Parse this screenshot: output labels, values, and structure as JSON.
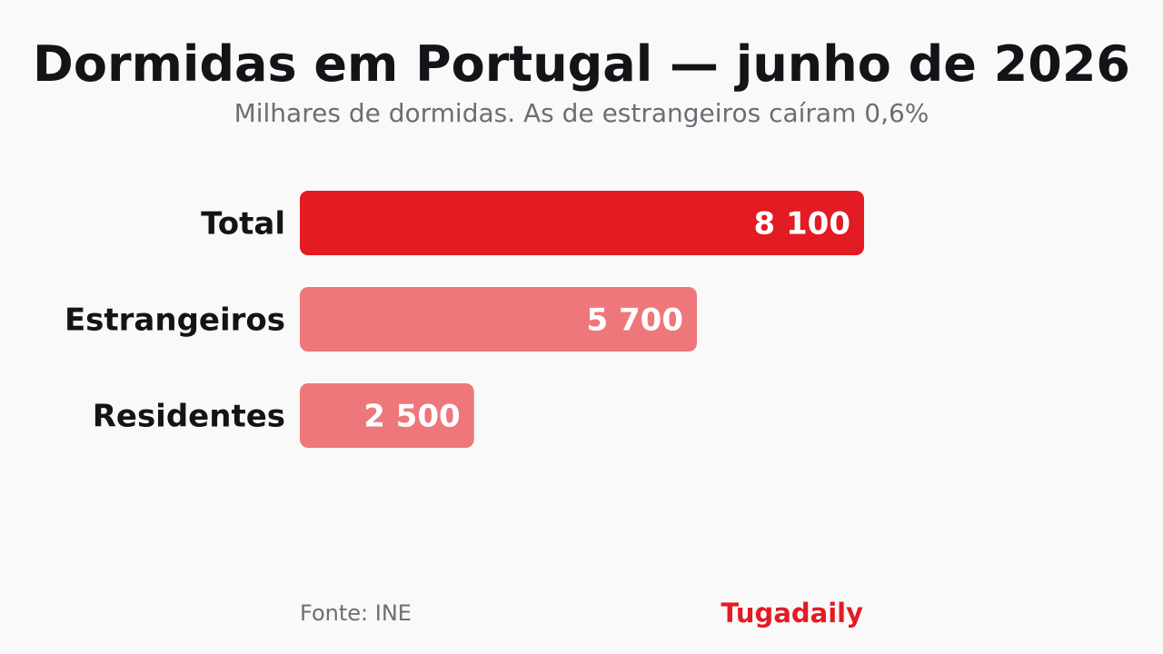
{
  "title": "Dormidas em Portugal — junho de 2026",
  "subtitle": "Milhares de dormidas. As de estrangeiros caíram 0,6%",
  "footer": {
    "source": "Fonte: INE",
    "brand": "Tugadaily",
    "brand_color": "#e31b23"
  },
  "chart_data": {
    "type": "bar",
    "orientation": "horizontal",
    "categories": [
      "Total",
      "Estrangeiros",
      "Residentes"
    ],
    "values": [
      8100,
      5700,
      2500
    ],
    "value_labels": [
      "8 100",
      "5 700",
      "2 500"
    ],
    "colors": [
      "#e31b23",
      "#ee777b",
      "#ee777b"
    ],
    "xlim": [
      0,
      8100
    ],
    "grid": false,
    "legend": "none"
  }
}
